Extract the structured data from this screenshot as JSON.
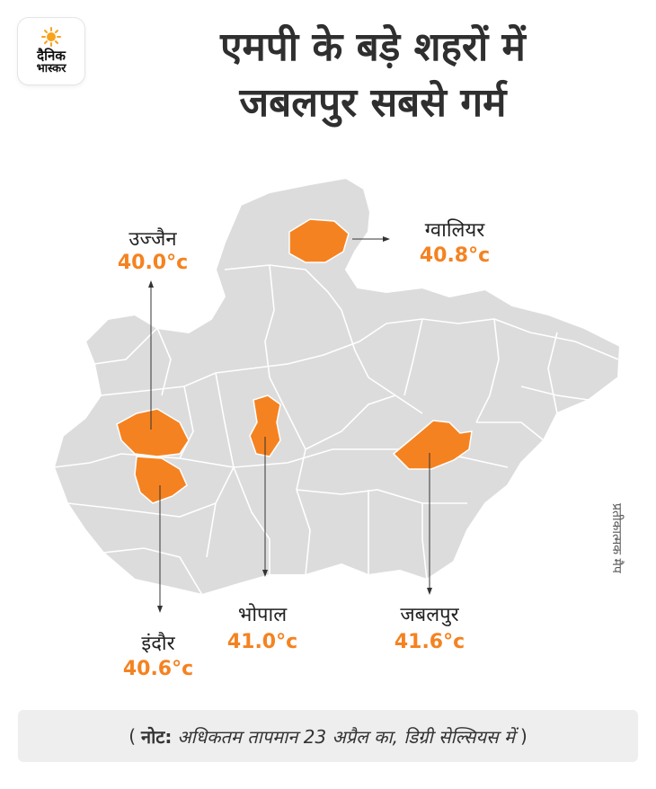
{
  "logo": {
    "line1": "दैनिक",
    "line2": "भास्कर"
  },
  "title": {
    "line1": "एमपी के बड़े शहरों में",
    "line2": "जबलपुर सबसे गर्म"
  },
  "cities": [
    {
      "name": "उज्जैन",
      "temp": "40.0°c"
    },
    {
      "name": "ग्वालियर",
      "temp": "40.8°c"
    },
    {
      "name": "भोपाल",
      "temp": "41.0°c"
    },
    {
      "name": "इंदौर",
      "temp": "40.6°c"
    },
    {
      "name": "जबलपुर",
      "temp": "41.6°c"
    }
  ],
  "side_note": "प्रतीकात्मक मैप",
  "note": {
    "open": "(",
    "label": "नोट:",
    "text": "अधिकतम तापमान 23 अप्रैल का, डिग्री सेल्सियस में",
    "close": ")"
  },
  "colors": {
    "highlight": "#f58220",
    "map_fill": "#dcdcdc",
    "border": "#ffffff",
    "pointer": "#333333"
  }
}
